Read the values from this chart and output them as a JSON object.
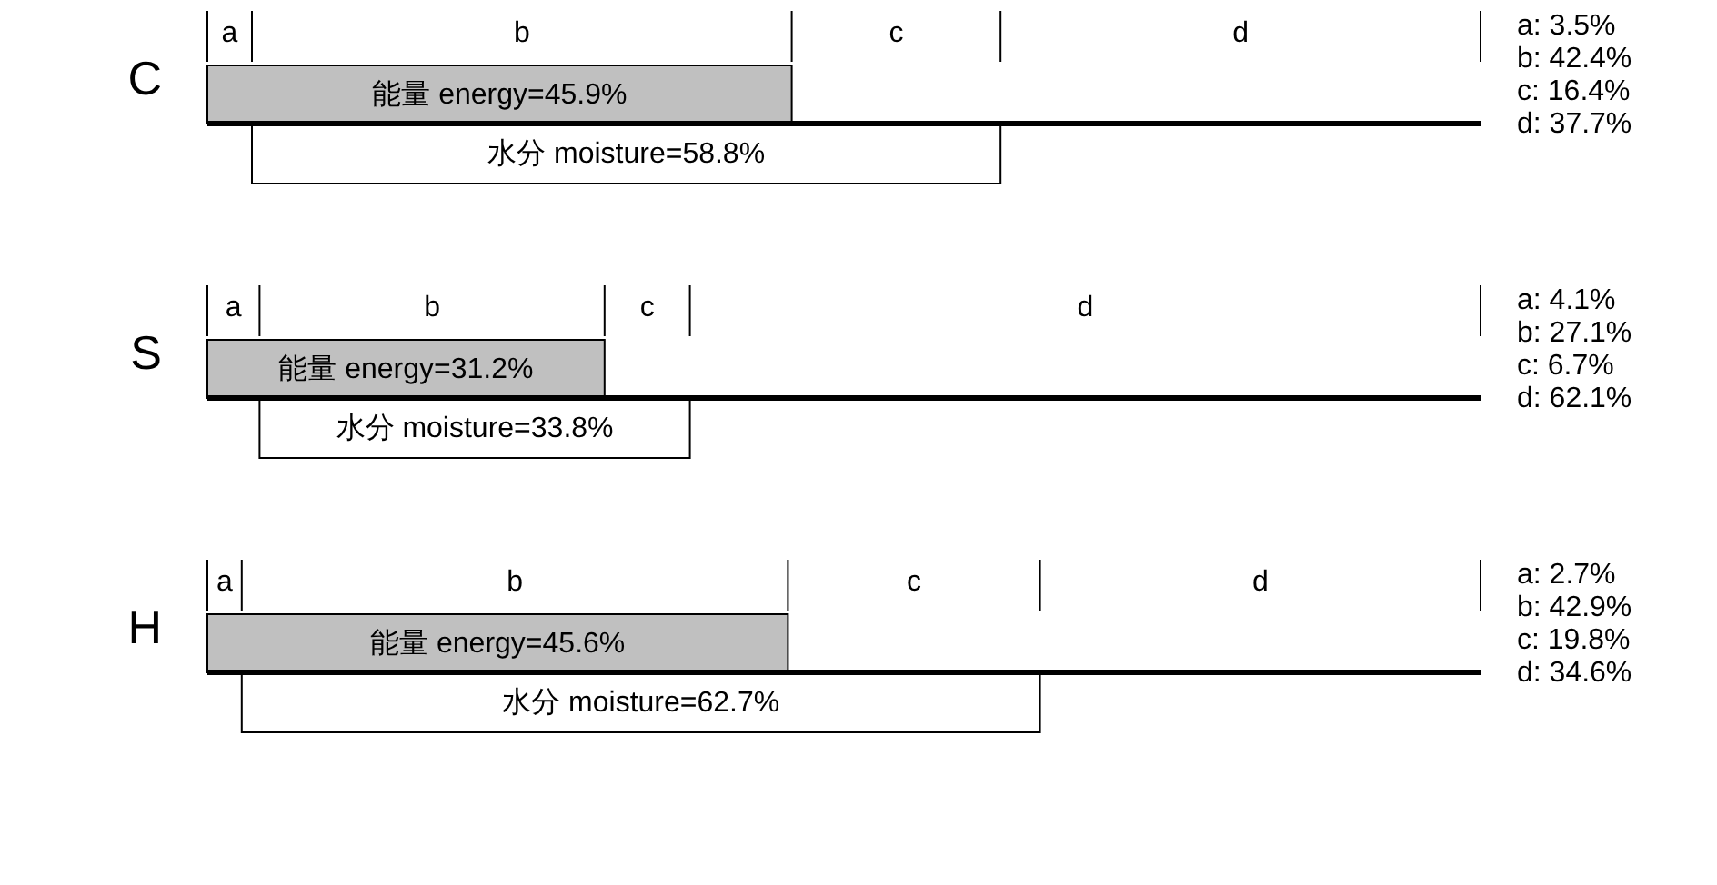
{
  "chart_data": {
    "type": "other",
    "categories": [
      "C",
      "S",
      "H"
    ],
    "series": [
      {
        "name": "a",
        "values": [
          3.5,
          4.1,
          2.7
        ],
        "value_labels": [
          "a: 3.5%",
          "a: 4.1%",
          "a: 2.7%"
        ]
      },
      {
        "name": "b",
        "values": [
          42.4,
          27.1,
          42.9
        ],
        "value_labels": [
          "b: 42.4%",
          "b: 27.1%",
          "b: 42.9%"
        ]
      },
      {
        "name": "c",
        "values": [
          16.4,
          6.7,
          19.8
        ],
        "value_labels": [
          "c: 16.4%",
          "c: 6.7%",
          "c: 19.8%"
        ]
      },
      {
        "name": "d",
        "values": [
          37.7,
          62.1,
          34.6
        ],
        "value_labels": [
          "d: 37.7%",
          "d: 62.1%",
          "d: 34.6%"
        ]
      },
      {
        "color": "#c0c0c0",
        "values": [
          45.9,
          31.2,
          45.6
        ],
        "value_labels": [
          "能量 energy=45.9%",
          "能量 energy=31.2%",
          "能量 energy=45.6%"
        ]
      },
      {
        "color": "#ffffff",
        "values": [
          58.8,
          33.8,
          62.7
        ],
        "value_labels": [
          "水分 moisture=58.8%",
          "水分 moisture=33.8%",
          "水分 moisture=62.7%"
        ]
      }
    ]
  }
}
